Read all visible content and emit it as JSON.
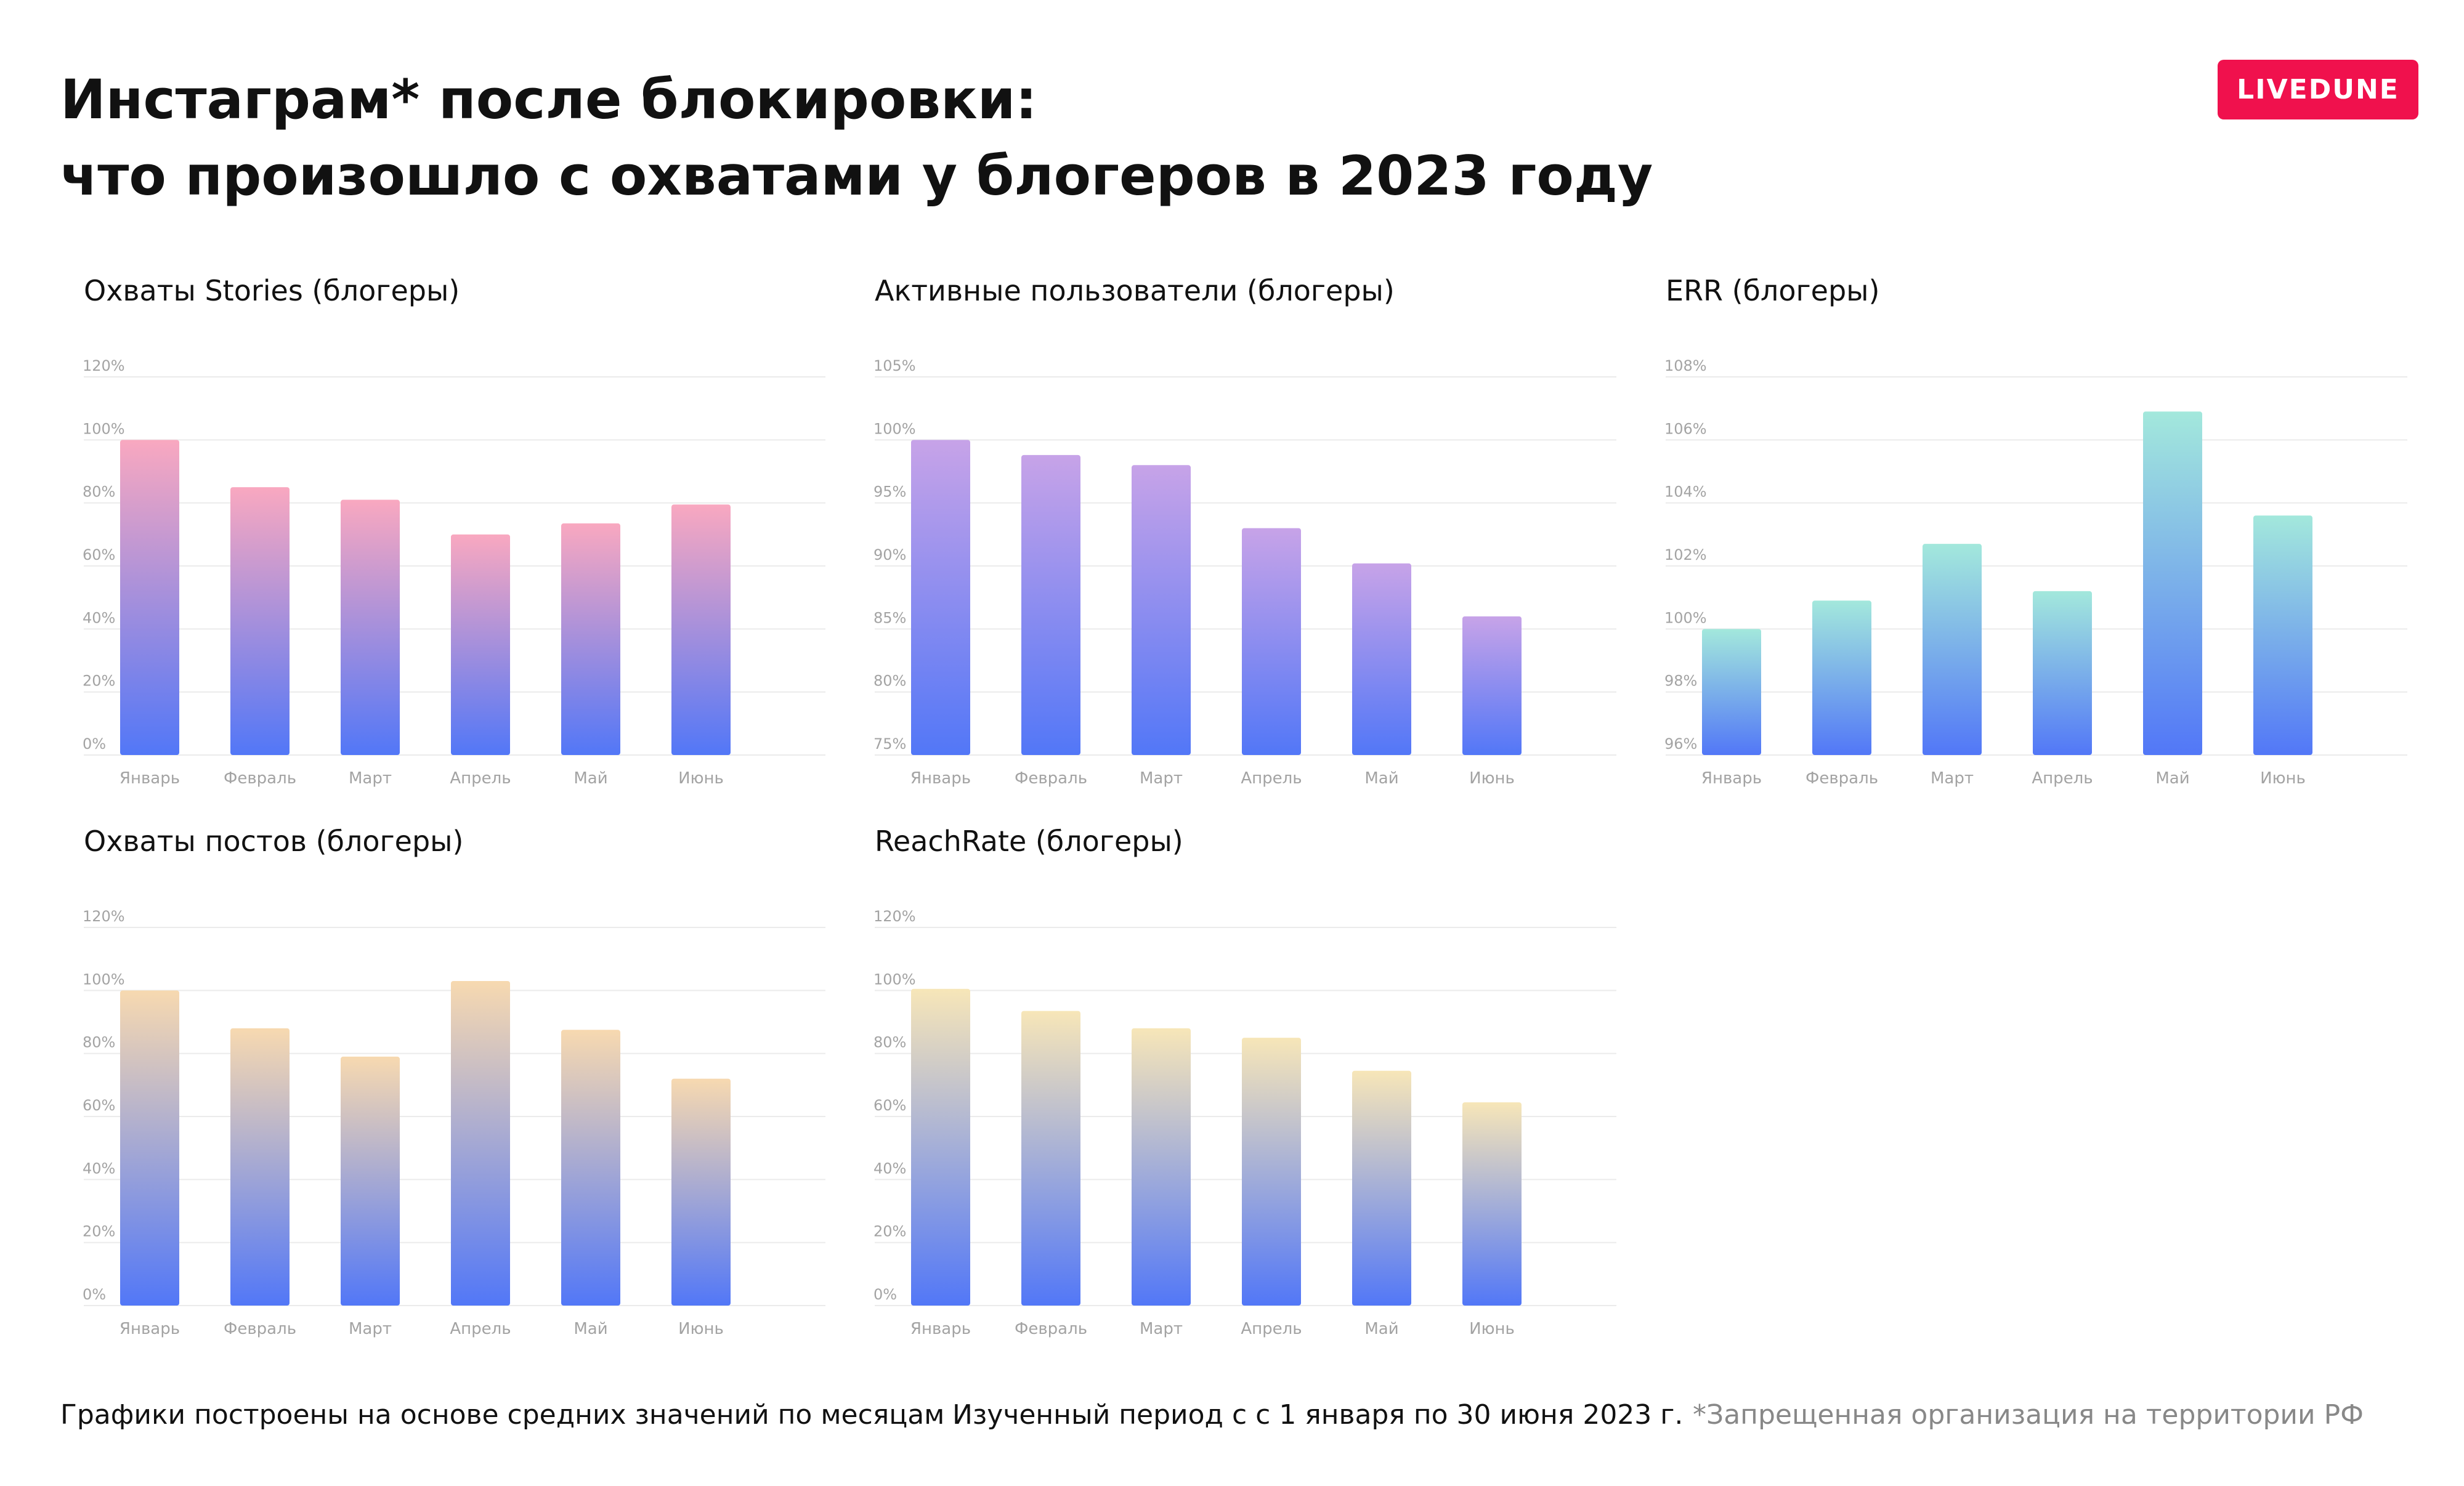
{
  "header": {
    "title_line1": "Инстаграм* после блокировки:",
    "title_line2": "что произошло с охватами у блогеров в 2023 году",
    "brand": "LIVEDUNE"
  },
  "colors": {
    "bar_bottom": "#5277f7",
    "pink_top": "#f9a8c0",
    "purple_top": "#c7a3e8",
    "teal_top": "#a3e8dc",
    "peach_top": "#f7d9b0",
    "yellow_top": "#f7e6b8",
    "grid": "#ebebeb",
    "tick_text": "#a3a3a3",
    "brand_red": "#f0114d"
  },
  "chart_data": [
    {
      "id": "stories",
      "type": "bar",
      "title": "Охваты Stories (блогеры)",
      "categories": [
        "Январь",
        "Февраль",
        "Март",
        "Апрель",
        "Май",
        "Июнь"
      ],
      "values": [
        100,
        85,
        81,
        70,
        73.5,
        79.5
      ],
      "ylim": [
        0,
        120
      ],
      "yticks": [
        0,
        20,
        40,
        60,
        80,
        100,
        120
      ],
      "ytick_labels": [
        "0%",
        "20%",
        "40%",
        "60%",
        "80%",
        "100%",
        "120%"
      ],
      "grid": true,
      "gradient": "pink"
    },
    {
      "id": "active",
      "type": "bar",
      "title": "Активные пользователи (блогеры)",
      "categories": [
        "Январь",
        "Февраль",
        "Март",
        "Апрель",
        "Май",
        "Июнь"
      ],
      "values": [
        100,
        98.8,
        98,
        93,
        90.2,
        86
      ],
      "ylim": [
        75,
        105
      ],
      "yticks": [
        75,
        80,
        85,
        90,
        95,
        100,
        105
      ],
      "ytick_labels": [
        "75%",
        "80%",
        "85%",
        "90%",
        "95%",
        "100%",
        "105%"
      ],
      "grid": true,
      "gradient": "purple"
    },
    {
      "id": "err",
      "type": "bar",
      "title": "ERR (блогеры)",
      "categories": [
        "Январь",
        "Февраль",
        "Март",
        "Апрель",
        "Май",
        "Июнь"
      ],
      "values": [
        100,
        100.9,
        102.7,
        101.2,
        106.9,
        103.6
      ],
      "ylim": [
        96,
        108
      ],
      "yticks": [
        96,
        98,
        100,
        102,
        104,
        106,
        108
      ],
      "ytick_labels": [
        "96%",
        "98%",
        "100%",
        "102%",
        "104%",
        "106%",
        "108%"
      ],
      "grid": true,
      "gradient": "teal"
    },
    {
      "id": "posts",
      "type": "bar",
      "title": "Охваты постов (блогеры)",
      "categories": [
        "Январь",
        "Февраль",
        "Март",
        "Апрель",
        "Май",
        "Июнь"
      ],
      "values": [
        100,
        88,
        79,
        103,
        87.5,
        72
      ],
      "ylim": [
        0,
        120
      ],
      "yticks": [
        0,
        20,
        40,
        60,
        80,
        100,
        120
      ],
      "ytick_labels": [
        "0%",
        "20%",
        "40%",
        "60%",
        "80%",
        "100%",
        "120%"
      ],
      "grid": true,
      "gradient": "peach"
    },
    {
      "id": "reachrate",
      "type": "bar",
      "title": "ReachRate (блогеры)",
      "categories": [
        "Январь",
        "Февраль",
        "Март",
        "Апрель",
        "Май",
        "Июнь"
      ],
      "values": [
        100.5,
        93.5,
        88,
        85,
        74.5,
        64.5
      ],
      "ylim": [
        0,
        120
      ],
      "yticks": [
        0,
        20,
        40,
        60,
        80,
        100,
        120
      ],
      "ytick_labels": [
        "0%",
        "20%",
        "40%",
        "60%",
        "80%",
        "100%",
        "120%"
      ],
      "grid": true,
      "gradient": "yellow"
    }
  ],
  "footer": {
    "note1": "Графики построены на основе средних значений по месяцам",
    "note2": "Изученный период с с 1 января по 30 июня 2023 г.",
    "note3": "*Запрещенная организация на территории РФ"
  }
}
